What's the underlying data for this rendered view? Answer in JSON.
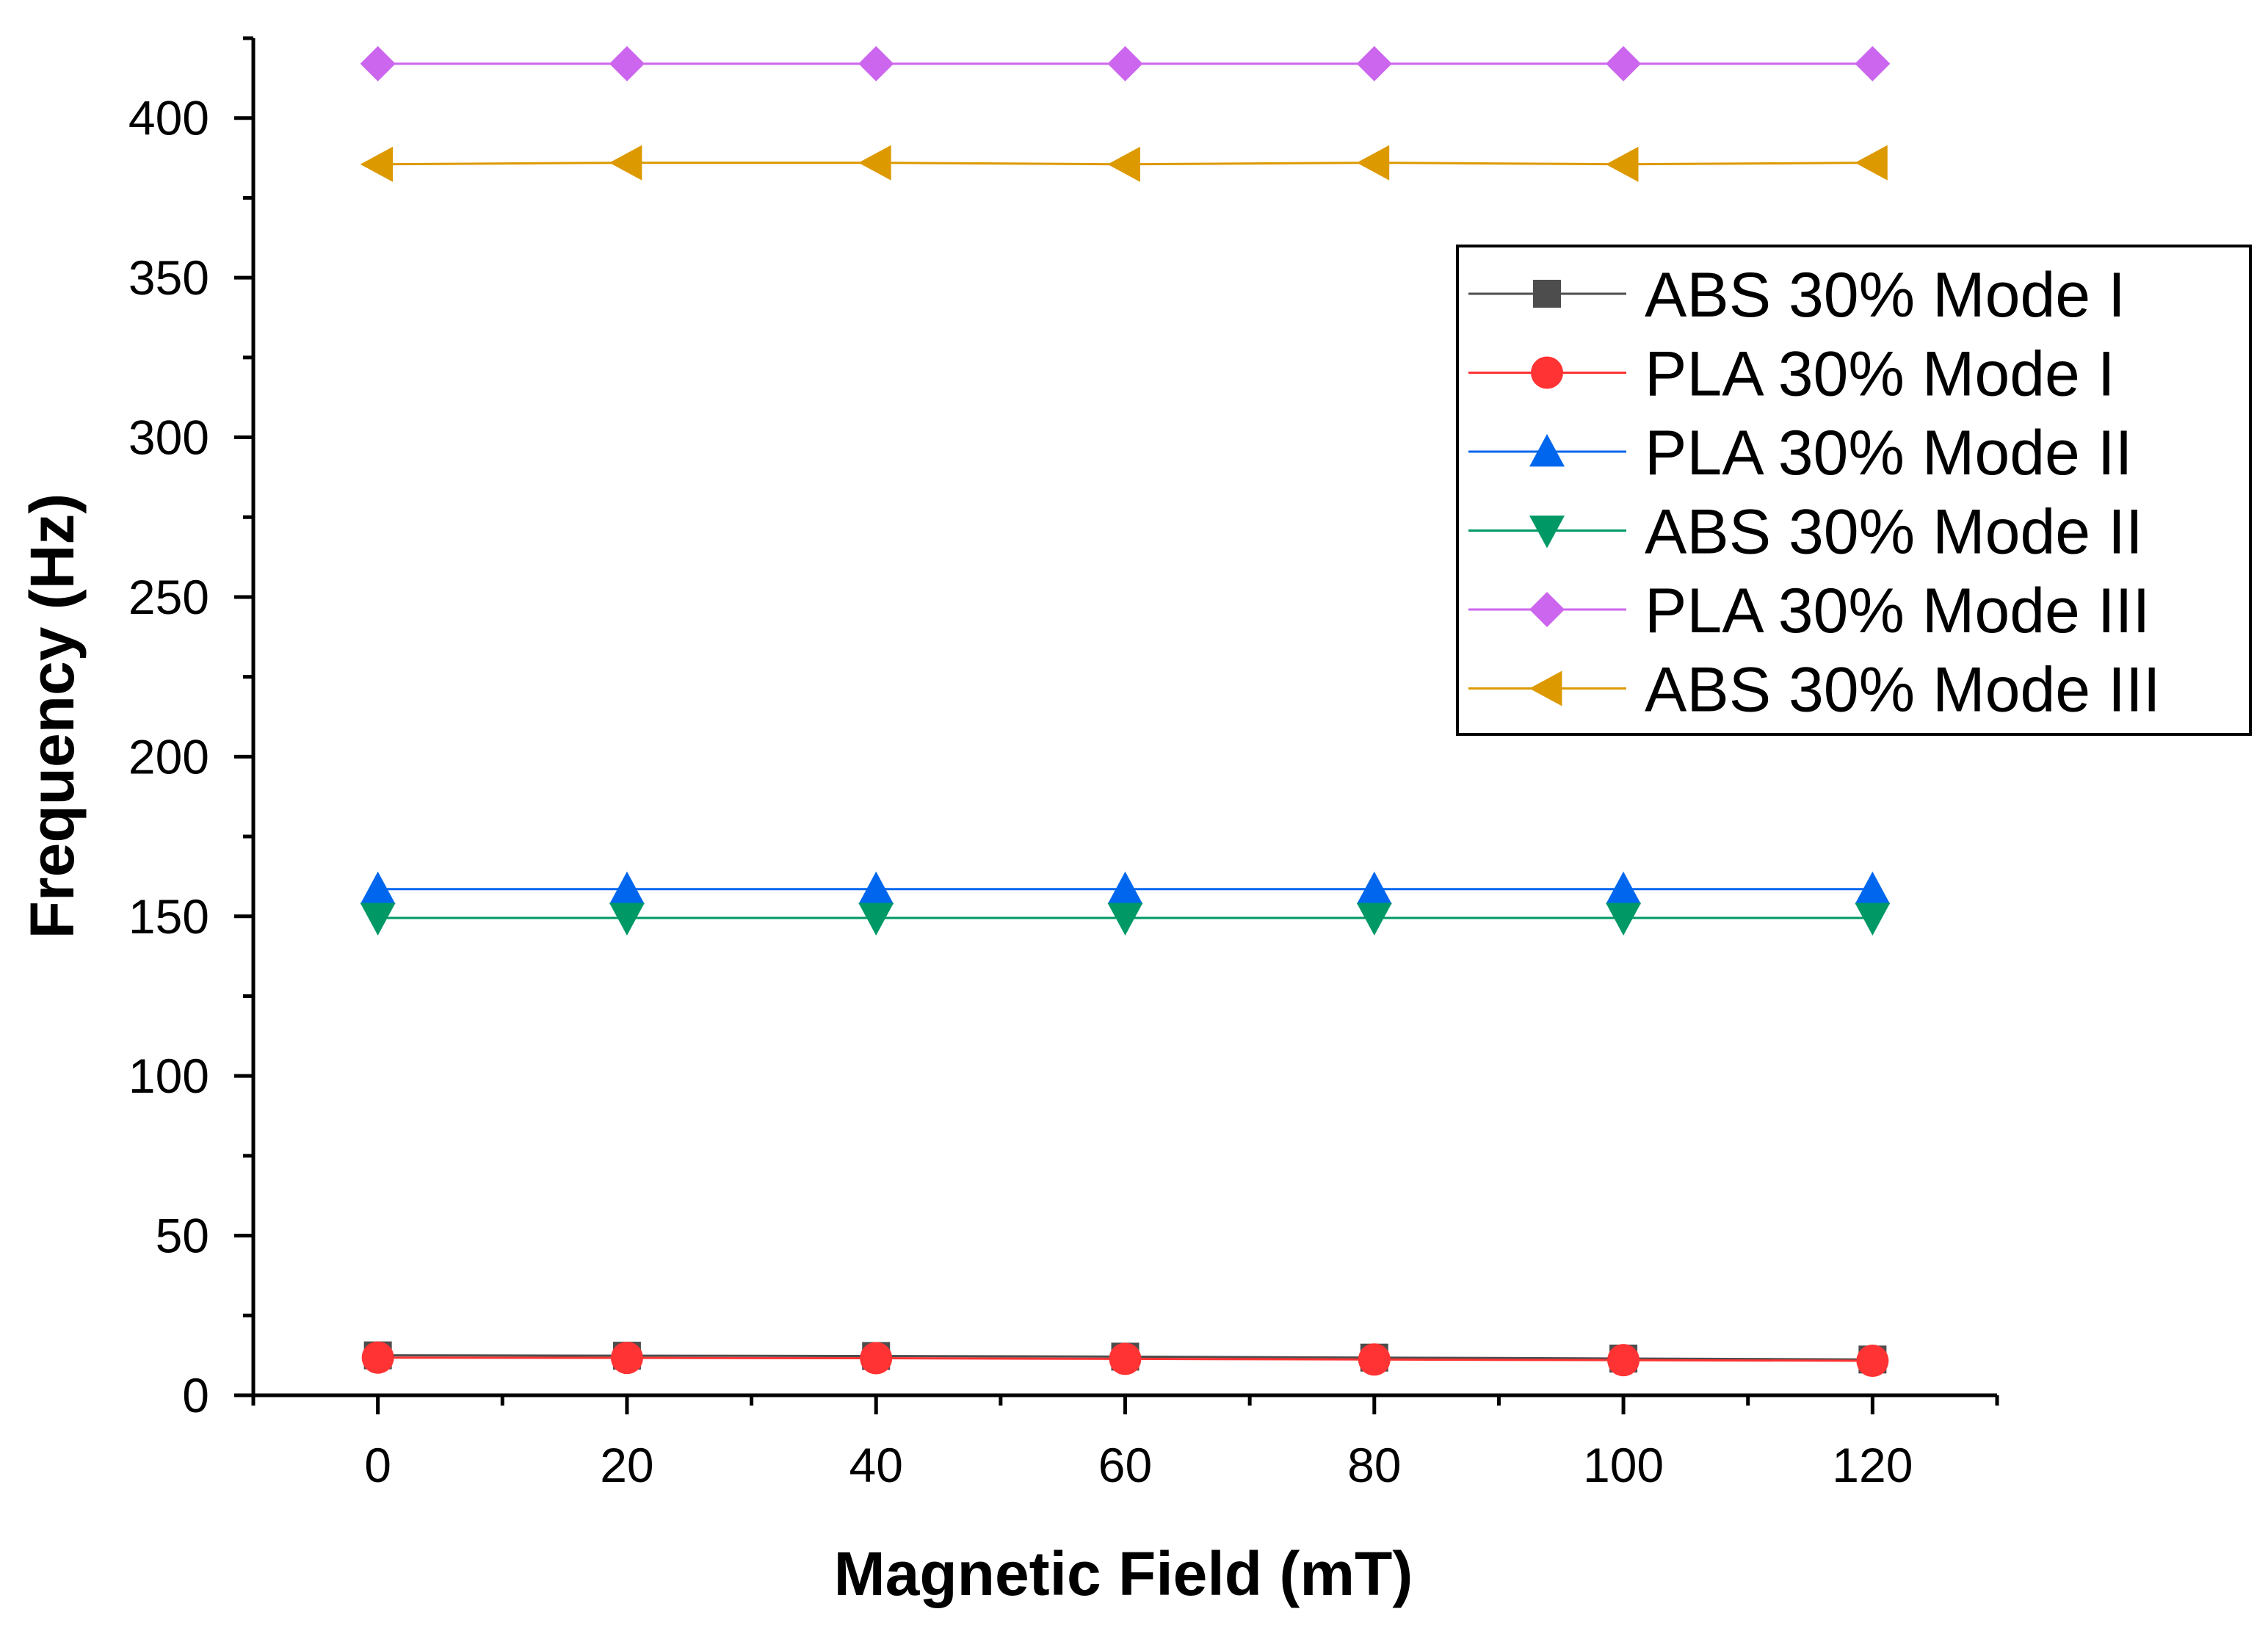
{
  "chart_data": {
    "type": "line",
    "title": "",
    "xlabel": "Magnetic Field (mT)",
    "ylabel": "Frequency (Hz)",
    "x": [
      0,
      20,
      40,
      60,
      80,
      100,
      120
    ],
    "xlim": [
      -10,
      130
    ],
    "ylim": [
      0,
      425
    ],
    "xticks": [
      0,
      20,
      40,
      60,
      80,
      100,
      120
    ],
    "yticks": [
      0,
      50,
      100,
      150,
      200,
      250,
      300,
      350,
      400
    ],
    "grid": false,
    "legend_position": "top-right",
    "series": [
      {
        "name": "ABS 30% Mode I",
        "color": "#4d4d4d",
        "marker": "square",
        "values": [
          12.5,
          12.4,
          12.3,
          12.1,
          11.8,
          11.5,
          11.2
        ]
      },
      {
        "name": "PLA 30% Mode I",
        "color": "#ff3333",
        "marker": "circle",
        "values": [
          11.8,
          11.7,
          11.6,
          11.4,
          11.2,
          11.0,
          10.8
        ]
      },
      {
        "name": "PLA 30% Mode II",
        "color": "#0066ee",
        "marker": "triangle-up",
        "values": [
          158.5,
          158.5,
          158.5,
          158.5,
          158.5,
          158.5,
          158.5
        ]
      },
      {
        "name": "ABS 30% Mode II",
        "color": "#009966",
        "marker": "triangle-down",
        "values": [
          149.5,
          149.5,
          149.5,
          149.5,
          149.5,
          149.5,
          149.5
        ]
      },
      {
        "name": "PLA 30% Mode III",
        "color": "#cc66ee",
        "marker": "diamond",
        "values": [
          417,
          417,
          417,
          417,
          417,
          417,
          417
        ]
      },
      {
        "name": "ABS 30% Mode III",
        "color": "#dd9900",
        "marker": "triangle-left",
        "values": [
          385.5,
          386,
          386,
          385.5,
          386,
          385.5,
          386
        ]
      }
    ]
  }
}
